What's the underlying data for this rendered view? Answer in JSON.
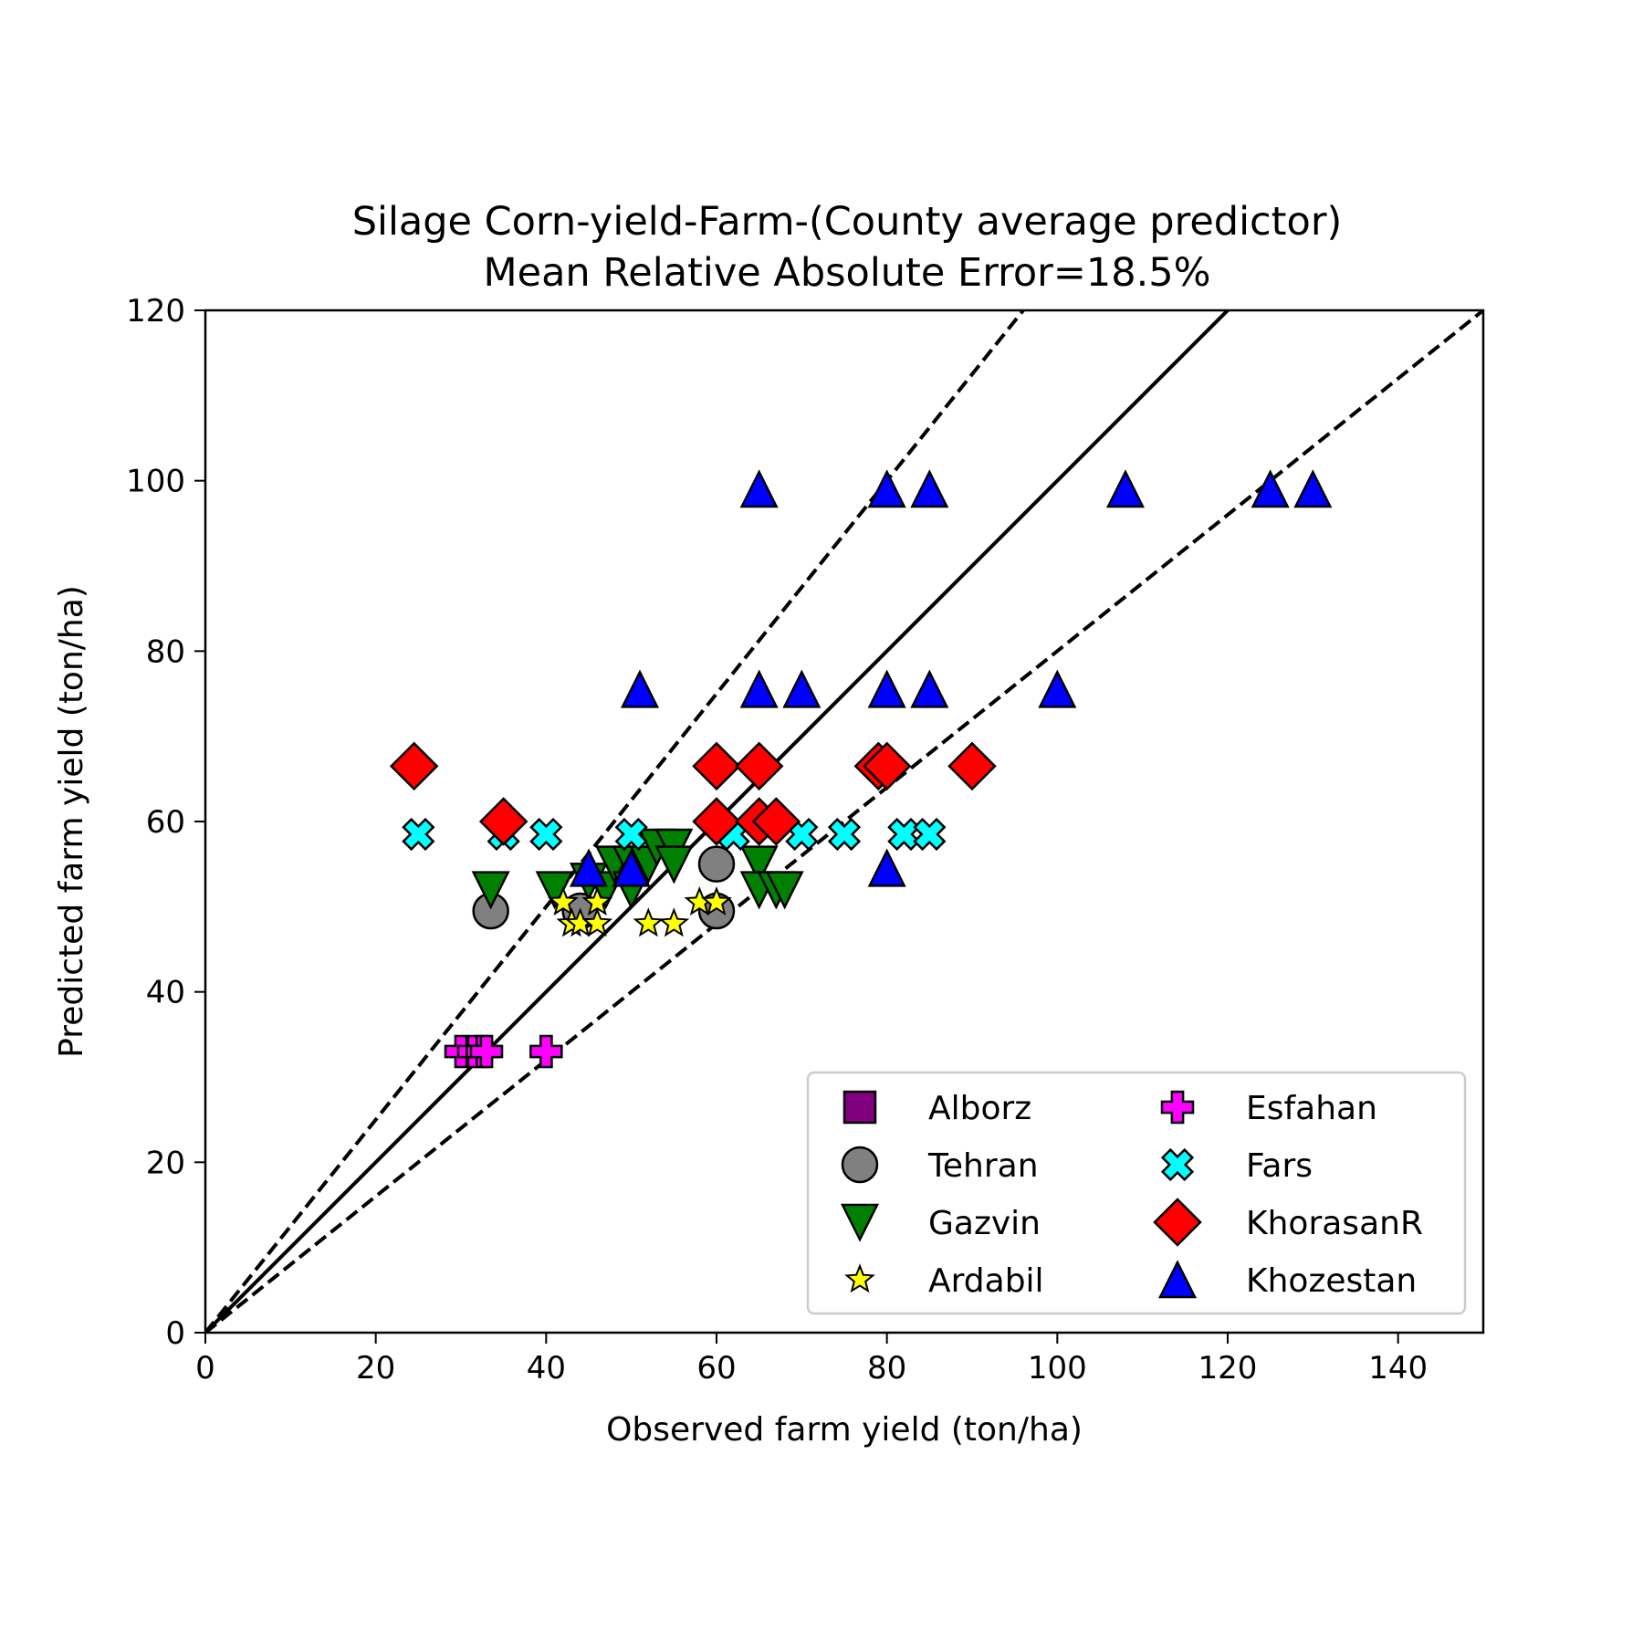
{
  "chart_data": {
    "type": "scatter",
    "title": "Silage Corn-yield-Farm-(County average predictor)",
    "subtitle": "Mean Relative Absolute Error=18.5%",
    "xlabel": "Observed farm yield (ton/ha)",
    "ylabel": "Predicted farm yield (ton/ha)",
    "xlim": [
      0,
      150
    ],
    "ylim": [
      0,
      120
    ],
    "xticks": [
      0,
      20,
      40,
      60,
      80,
      100,
      120,
      140
    ],
    "yticks": [
      0,
      20,
      40,
      60,
      80,
      100,
      120
    ],
    "grid": false,
    "legend_position": "lower-right",
    "legend_columns": 2,
    "reference_lines": [
      {
        "slope": 1.0,
        "style": "solid"
      },
      {
        "slope": 1.25,
        "style": "dashed"
      },
      {
        "slope": 0.8,
        "style": "dashed"
      }
    ],
    "series": [
      {
        "name": "Alborz",
        "marker": "square",
        "color": "#800080",
        "points": []
      },
      {
        "name": "Tehran",
        "marker": "circle",
        "color": "#808080",
        "points": [
          [
            33.5,
            49.5
          ],
          [
            44,
            49.5
          ],
          [
            60,
            55
          ],
          [
            60,
            49.5
          ]
        ]
      },
      {
        "name": "Gazvin",
        "marker": "triangle-down",
        "color": "#008000",
        "points": [
          [
            33.5,
            52
          ],
          [
            41,
            52
          ],
          [
            45,
            53
          ],
          [
            47,
            52
          ],
          [
            48,
            55
          ],
          [
            50,
            55
          ],
          [
            50,
            52
          ],
          [
            52,
            55
          ],
          [
            53,
            57
          ],
          [
            55,
            57
          ],
          [
            55,
            55
          ],
          [
            65,
            55
          ],
          [
            65,
            52
          ],
          [
            67,
            52
          ],
          [
            68,
            52
          ]
        ]
      },
      {
        "name": "Ardabil",
        "marker": "star",
        "color": "#ffff00",
        "points": [
          [
            42,
            50.5
          ],
          [
            43,
            48
          ],
          [
            44,
            48
          ],
          [
            46,
            50.5
          ],
          [
            46,
            48
          ],
          [
            52,
            48
          ],
          [
            55,
            48
          ],
          [
            58,
            50.5
          ],
          [
            60,
            50.5
          ]
        ]
      },
      {
        "name": "Esfahan",
        "marker": "plus",
        "color": "#ff00ff",
        "points": [
          [
            30,
            33
          ],
          [
            31.5,
            33
          ],
          [
            32.5,
            33
          ],
          [
            33,
            33
          ],
          [
            40,
            33
          ]
        ]
      },
      {
        "name": "Fars",
        "marker": "x",
        "color": "#00ffff",
        "points": [
          [
            25,
            58.5
          ],
          [
            35,
            58.5
          ],
          [
            40,
            58.5
          ],
          [
            50,
            58.5
          ],
          [
            62,
            58.5
          ],
          [
            70,
            58.5
          ],
          [
            75,
            58.5
          ],
          [
            82,
            58.5
          ],
          [
            85,
            58.5
          ]
        ]
      },
      {
        "name": "KhorasanR",
        "marker": "diamond",
        "color": "#ff0000",
        "points": [
          [
            24.5,
            66.5
          ],
          [
            35,
            60
          ],
          [
            60,
            66.5
          ],
          [
            60,
            60
          ],
          [
            65,
            66.5
          ],
          [
            65,
            60
          ],
          [
            67,
            60
          ],
          [
            79,
            66.5
          ],
          [
            80,
            66.5
          ],
          [
            90,
            66.5
          ]
        ]
      },
      {
        "name": "Khozestan",
        "marker": "triangle-up",
        "color": "#0000ff",
        "points": [
          [
            45,
            54.5
          ],
          [
            50,
            54.5
          ],
          [
            51,
            75.5
          ],
          [
            65,
            99
          ],
          [
            65,
            75.5
          ],
          [
            70,
            75.5
          ],
          [
            80,
            99
          ],
          [
            80,
            75.5
          ],
          [
            80,
            54.5
          ],
          [
            85,
            99
          ],
          [
            85,
            75.5
          ],
          [
            100,
            75.5
          ],
          [
            108,
            99
          ],
          [
            125,
            99
          ],
          [
            130,
            99
          ]
        ]
      }
    ]
  }
}
